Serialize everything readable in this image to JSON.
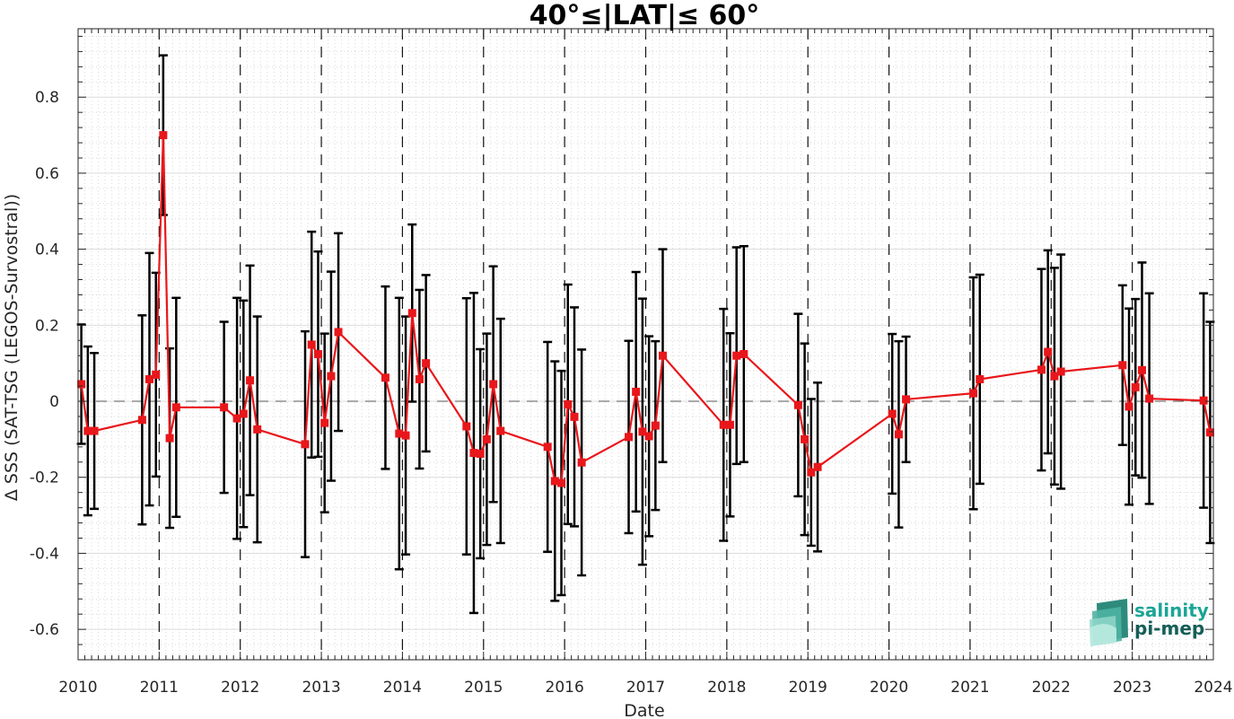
{
  "chart_data": {
    "type": "line",
    "title": "40°≤|LAT|≤ 60°",
    "xlabel": "Date",
    "ylabel": "Δ SSS (SAT-TSG (LEGOS-Survostral))",
    "xlim": [
      2010.0,
      2024.0
    ],
    "ylim": [
      -0.68,
      0.98
    ],
    "x_ticks": [
      2010,
      2011,
      2012,
      2013,
      2014,
      2015,
      2016,
      2017,
      2018,
      2019,
      2020,
      2021,
      2022,
      2023,
      2024
    ],
    "x_tick_labels": [
      "2010",
      "2011",
      "2012",
      "2013",
      "2014",
      "2015",
      "2016",
      "2017",
      "2018",
      "2019",
      "2020",
      "2021",
      "2022",
      "2023",
      "2024"
    ],
    "y_ticks": [
      -0.6,
      -0.4,
      -0.2,
      0,
      0.2,
      0.4,
      0.6,
      0.8
    ],
    "y_tick_labels": [
      "-0.6",
      "-0.4",
      "-0.2",
      "0",
      "0.2",
      "0.4",
      "0.6",
      "0.8"
    ],
    "grid": true,
    "year_separators": [
      2011,
      2012,
      2013,
      2014,
      2015,
      2016,
      2017,
      2018,
      2019,
      2020,
      2021,
      2022,
      2023
    ],
    "zero_line": 0,
    "series": [
      {
        "color": "#e8171b",
        "errorbar_color": "#000000",
        "marker": "square",
        "x": [
          2010.04,
          2010.12,
          2010.2,
          2010.79,
          2010.88,
          2010.96,
          2011.05,
          2011.13,
          2011.21,
          2011.8,
          2011.96,
          2012.04,
          2012.12,
          2012.21,
          2012.8,
          2012.88,
          2012.96,
          2013.04,
          2013.12,
          2013.21,
          2013.79,
          2013.96,
          2014.04,
          2014.12,
          2014.21,
          2014.29,
          2014.79,
          2014.88,
          2014.96,
          2015.04,
          2015.12,
          2015.21,
          2015.79,
          2015.88,
          2015.96,
          2016.04,
          2016.12,
          2016.21,
          2016.79,
          2016.88,
          2016.96,
          2017.04,
          2017.12,
          2017.21,
          2017.96,
          2018.04,
          2018.12,
          2018.21,
          2018.88,
          2018.96,
          2019.04,
          2019.12,
          2020.04,
          2020.12,
          2020.21,
          2021.04,
          2021.12,
          2021.88,
          2021.96,
          2022.04,
          2022.12,
          2022.88,
          2022.96,
          2023.04,
          2023.12,
          2023.21,
          2023.88,
          2023.96
        ],
        "y": [
          0.045,
          -0.078,
          -0.078,
          -0.049,
          0.058,
          0.07,
          0.7,
          -0.097,
          -0.016,
          -0.016,
          -0.045,
          -0.033,
          0.055,
          -0.074,
          -0.113,
          0.149,
          0.124,
          -0.057,
          0.066,
          0.182,
          0.062,
          -0.085,
          -0.09,
          0.232,
          0.058,
          0.1,
          -0.066,
          -0.136,
          -0.138,
          -0.1,
          0.045,
          -0.078,
          -0.12,
          -0.21,
          -0.215,
          -0.008,
          -0.041,
          -0.161,
          -0.094,
          0.025,
          -0.08,
          -0.092,
          -0.064,
          0.12,
          -0.062,
          -0.062,
          0.12,
          0.124,
          -0.01,
          -0.1,
          -0.187,
          -0.173,
          -0.033,
          -0.087,
          0.005,
          0.021,
          0.058,
          0.083,
          0.13,
          0.066,
          0.078,
          0.095,
          -0.014,
          0.037,
          0.082,
          0.007,
          0.002,
          -0.082
        ],
        "err": [
          0.157,
          0.222,
          0.205,
          0.275,
          0.332,
          0.268,
          0.21,
          0.236,
          0.288,
          0.225,
          0.317,
          0.298,
          0.302,
          0.297,
          0.297,
          0.297,
          0.27,
          0.235,
          0.275,
          0.26,
          0.24,
          0.357,
          0.313,
          0.233,
          0.235,
          0.232,
          0.337,
          0.421,
          0.275,
          0.278,
          0.31,
          0.295,
          0.276,
          0.315,
          0.295,
          0.315,
          0.288,
          0.297,
          0.253,
          0.315,
          0.35,
          0.263,
          0.222,
          0.28,
          0.305,
          0.241,
          0.285,
          0.284,
          0.24,
          0.252,
          0.193,
          0.222,
          0.21,
          0.245,
          0.165,
          0.305,
          0.275,
          0.265,
          0.267,
          0.285,
          0.308,
          0.21,
          0.258,
          0.232,
          0.283,
          0.277,
          0.282,
          0.291
        ]
      }
    ]
  },
  "logo": {
    "line1": "salinity",
    "line2": "pi-mep",
    "color1": "#1aa595",
    "color2": "#155e57"
  }
}
